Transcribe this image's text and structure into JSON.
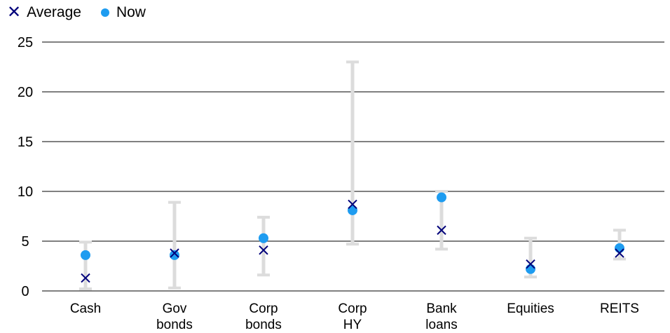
{
  "chart_data": {
    "type": "scatter",
    "title": "",
    "xlabel": "",
    "ylabel": "",
    "ylim": [
      0,
      25
    ],
    "yticks": [
      0,
      5,
      10,
      15,
      20,
      25
    ],
    "grid": true,
    "legend_placement": "top-left",
    "categories": [
      [
        "Cash"
      ],
      [
        "Gov",
        "bonds"
      ],
      [
        "Corp",
        "bonds"
      ],
      [
        "Corp",
        "HY"
      ],
      [
        "Bank",
        "loans"
      ],
      [
        "Equities"
      ],
      [
        "REITS"
      ]
    ],
    "series": [
      {
        "name": "Average",
        "marker": "x",
        "color": "#00007a",
        "values": [
          1.3,
          3.8,
          4.1,
          8.7,
          6.1,
          2.7,
          3.8
        ]
      },
      {
        "name": "Now",
        "marker": "dot",
        "color": "#1e9cf0",
        "values": [
          3.6,
          3.6,
          5.3,
          8.1,
          9.4,
          2.2,
          4.3
        ]
      }
    ],
    "ranges": {
      "color": "#dcdcdc",
      "low": [
        0.2,
        0.3,
        1.6,
        4.7,
        4.2,
        1.4,
        3.2
      ],
      "high": [
        4.9,
        8.9,
        7.4,
        23.0,
        10.0,
        5.3,
        6.1
      ]
    }
  },
  "legend": {
    "average_label": "Average",
    "now_label": "Now",
    "average_symbol": "✕"
  }
}
